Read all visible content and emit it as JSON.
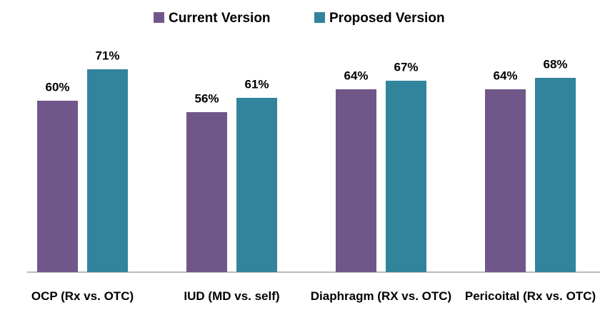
{
  "chart_data": {
    "type": "bar",
    "categories": [
      "OCP (Rx vs. OTC)",
      "IUD (MD vs. self)",
      "Diaphragm  (RX vs. OTC)",
      "Pericoital (Rx vs. OTC)"
    ],
    "series": [
      {
        "name": "Current Version",
        "color": "#70578a",
        "values": [
          60,
          56,
          64,
          64
        ],
        "value_labels": [
          "60%",
          "56%",
          "64%",
          "64%"
        ]
      },
      {
        "name": "Proposed Version",
        "color": "#31849b",
        "values": [
          71,
          61,
          67,
          68
        ],
        "value_labels": [
          "71%",
          "61%",
          "67%",
          "68%"
        ]
      }
    ],
    "ylim": [
      0,
      80
    ],
    "legend": "top"
  }
}
